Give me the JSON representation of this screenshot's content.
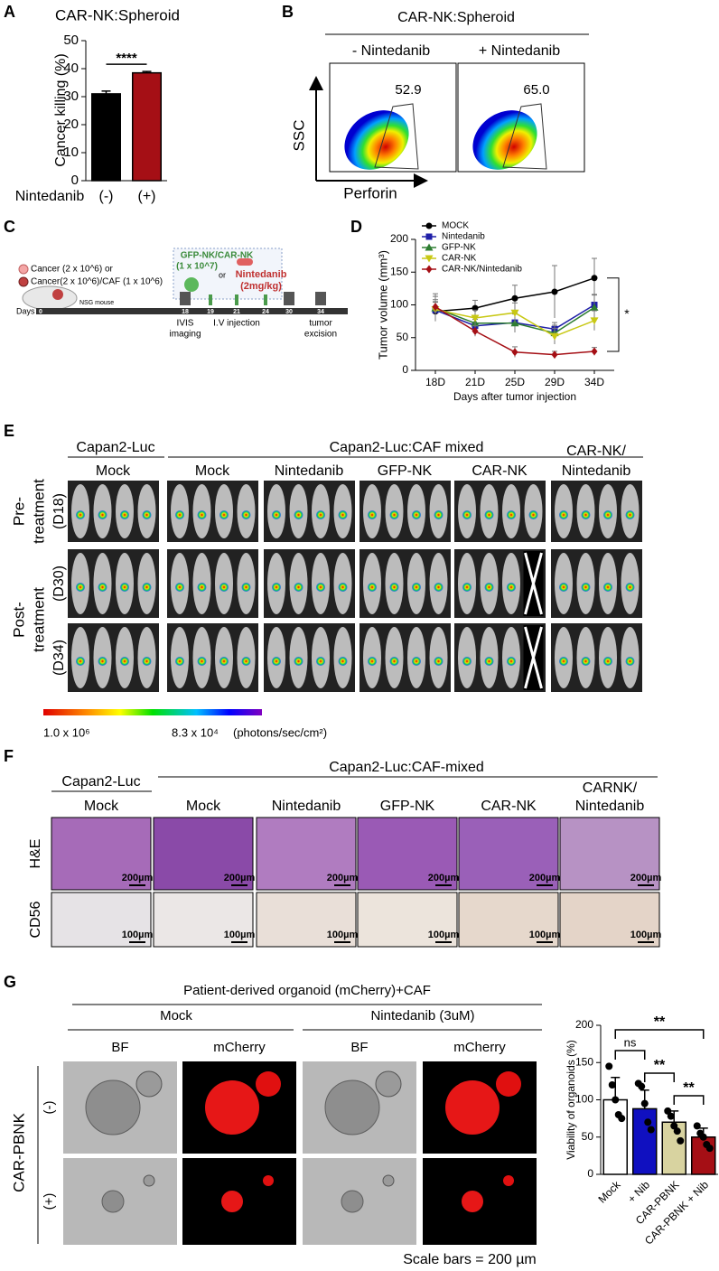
{
  "panel_labels": [
    "A",
    "B",
    "C",
    "D",
    "E",
    "F",
    "G"
  ],
  "chart_data": [
    {
      "type": "bar",
      "title": "CAR-NK:Spheroid",
      "y_label": "Cancer killing (%)",
      "x_label": "Nintedanib",
      "categories": [
        "(-)",
        "(+)"
      ],
      "values": [
        31,
        38.5
      ],
      "errors": [
        1,
        0.5
      ],
      "colors": [
        "#000000",
        "#a50f15"
      ],
      "ylim": [
        0,
        50
      ],
      "yticks": [
        0,
        10,
        20,
        30,
        40,
        50
      ],
      "annotations": [
        "****"
      ]
    },
    {
      "type": "line",
      "y_label": "Tumor volume (mm³)",
      "x_label": "Days after tumor injection",
      "categories": [
        "18D",
        "21D",
        "25D",
        "29D",
        "34D"
      ],
      "series": [
        {
          "name": "MOCK",
          "color": "#000000",
          "marker": "circle",
          "values": [
            90,
            95,
            110,
            120,
            141
          ],
          "errors": [
            15,
            12,
            20,
            40,
            30
          ]
        },
        {
          "name": "Nintedanib",
          "color": "#1f1fa8",
          "marker": "square",
          "values": [
            92,
            68,
            73,
            63,
            100
          ],
          "errors": [
            12,
            10,
            15,
            10,
            15
          ]
        },
        {
          "name": "GFP-NK",
          "color": "#2e7d32",
          "marker": "triangle",
          "values": [
            95,
            72,
            72,
            57,
            96
          ],
          "errors": [
            18,
            10,
            14,
            12,
            20
          ]
        },
        {
          "name": "CAR-NK",
          "color": "#c8c814",
          "marker": "triangle-down",
          "values": [
            93,
            80,
            88,
            52,
            76
          ],
          "errors": [
            15,
            12,
            15,
            12,
            15
          ]
        },
        {
          "name": "CAR-NK/Nintedanib",
          "color": "#a50f15",
          "marker": "diamond",
          "values": [
            97,
            60,
            28,
            24,
            29
          ],
          "errors": [
            20,
            8,
            8,
            5,
            6
          ]
        }
      ],
      "ylim": [
        0,
        200
      ],
      "yticks": [
        0,
        50,
        100,
        150,
        200
      ],
      "annotations": [
        "*"
      ]
    },
    {
      "type": "bar",
      "y_label": "Viability of organoids (%)",
      "categories": [
        "Mock",
        "+ Nib",
        "CAR-PBNK",
        "CAR-PBNK + Nib"
      ],
      "values": [
        100,
        88,
        70,
        50
      ],
      "errors": [
        30,
        25,
        15,
        12
      ],
      "colors": [
        "#ffffff",
        "#1010c0",
        "#d8d3a0",
        "#a50f15"
      ],
      "points": [
        [
          145,
          120,
          100,
          80,
          75
        ],
        [
          122,
          118,
          95,
          70,
          60
        ],
        [
          85,
          78,
          65,
          58,
          45
        ],
        [
          65,
          55,
          50,
          40,
          35
        ]
      ],
      "ylim": [
        0,
        200
      ],
      "yticks": [
        0,
        50,
        100,
        150,
        200
      ],
      "annotations": [
        "ns",
        "**",
        "**",
        "**"
      ]
    }
  ],
  "panel_b": {
    "title": "CAR-NK:Spheroid",
    "conditions": [
      "- Nintedanib",
      "+ Nintedanib"
    ],
    "gates": [
      "52.9",
      "65.0"
    ],
    "y_label": "SSC",
    "x_label": "Perforin"
  },
  "panel_c": {
    "groups": [
      "Cancer (2 x 10^6) or",
      "Cancer(2 x 10^6)/CAF (1 x 10^6)"
    ],
    "mouse": "NSG mouse",
    "cells": "GFP-NK/CAR-NK",
    "cell_dose": "(1 x 10^7)",
    "or": "or",
    "drug": "Nintedanib",
    "drug_dose": "(2mg/kg)",
    "axis": "Days",
    "days": [
      0,
      18,
      19,
      21,
      24,
      30,
      34
    ],
    "events": [
      [
        "IVIS",
        "imaging"
      ],
      [
        "I.V injection"
      ],
      [
        "tumor",
        "excision"
      ]
    ]
  },
  "panel_e": {
    "headers": [
      "Capan2-Luc",
      "Capan2-Luc:CAF mixed"
    ],
    "groups": [
      [
        "Mock"
      ],
      [
        "Mock"
      ],
      [
        "Nintedanib"
      ],
      [
        "GFP-NK"
      ],
      [
        "CAR-NK"
      ],
      [
        "CAR-NK/",
        "Nintedanib"
      ]
    ],
    "pre": [
      "Pre-",
      "treatment"
    ],
    "post": [
      "Post-",
      "treatment"
    ],
    "days": [
      "(D18)",
      "(D30)",
      "(D34)"
    ],
    "scale": [
      "1.0 x 10⁶",
      "8.3 x 10⁴",
      "(photons/sec/cm²)"
    ]
  },
  "panel_f": {
    "headers": [
      "Capan2-Luc",
      "Capan2-Luc:CAF-mixed"
    ],
    "columns": [
      [
        "Mock"
      ],
      [
        "Mock"
      ],
      [
        "Nintedanib"
      ],
      [
        "GFP-NK"
      ],
      [
        "CAR-NK"
      ],
      [
        "CARNK/",
        "Nintedanib"
      ]
    ],
    "rows": [
      "H&E",
      "CD56"
    ],
    "scale_bars": [
      "200µm",
      "100µm"
    ]
  },
  "panel_g": {
    "title": "Patient-derived organoid (mCherry)+CAF",
    "conditions": [
      "Mock",
      "Nintedanib (3uM)"
    ],
    "channels": [
      "BF",
      "mCherry"
    ],
    "row_title": "CAR-PBNK",
    "rows": [
      "(-)",
      "(+)"
    ],
    "note": "Scale bars = 200 µm"
  }
}
